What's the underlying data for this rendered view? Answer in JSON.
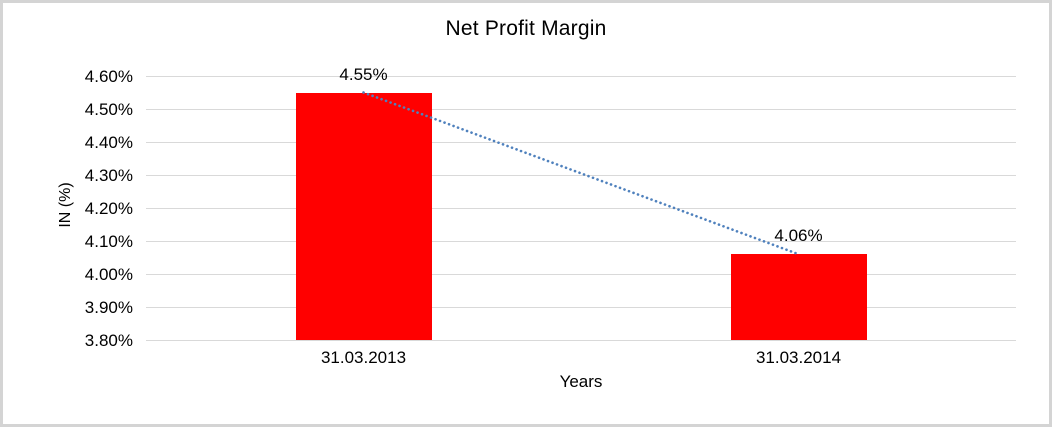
{
  "chart_data": {
    "type": "bar",
    "title": "Net Profit Margin",
    "xlabel": "Years",
    "ylabel": "IN (%)",
    "categories": [
      "31.03.2013",
      "31.03.2014"
    ],
    "values": [
      4.55,
      4.06
    ],
    "value_labels": [
      "4.55%",
      "4.06%"
    ],
    "y_ticks": [
      4.6,
      4.5,
      4.4,
      4.3,
      4.2,
      4.1,
      4.0,
      3.9,
      3.8
    ],
    "y_tick_labels": [
      "4.60%",
      "4.50%",
      "4.40%",
      "4.30%",
      "4.20%",
      "4.10%",
      "4.00%",
      "3.90%",
      "3.80%"
    ],
    "ylim": [
      3.8,
      4.6
    ],
    "grid": true,
    "legend": "none",
    "bar_color": "#ff0000",
    "gridline_color": "#d9d9d9",
    "text_color": "#000000",
    "trendline": {
      "style": "dotted",
      "color": "#4f81bd",
      "from": {
        "category": "31.03.2013",
        "value": 4.55
      },
      "to": {
        "category": "31.03.2014",
        "value": 4.06
      }
    }
  }
}
